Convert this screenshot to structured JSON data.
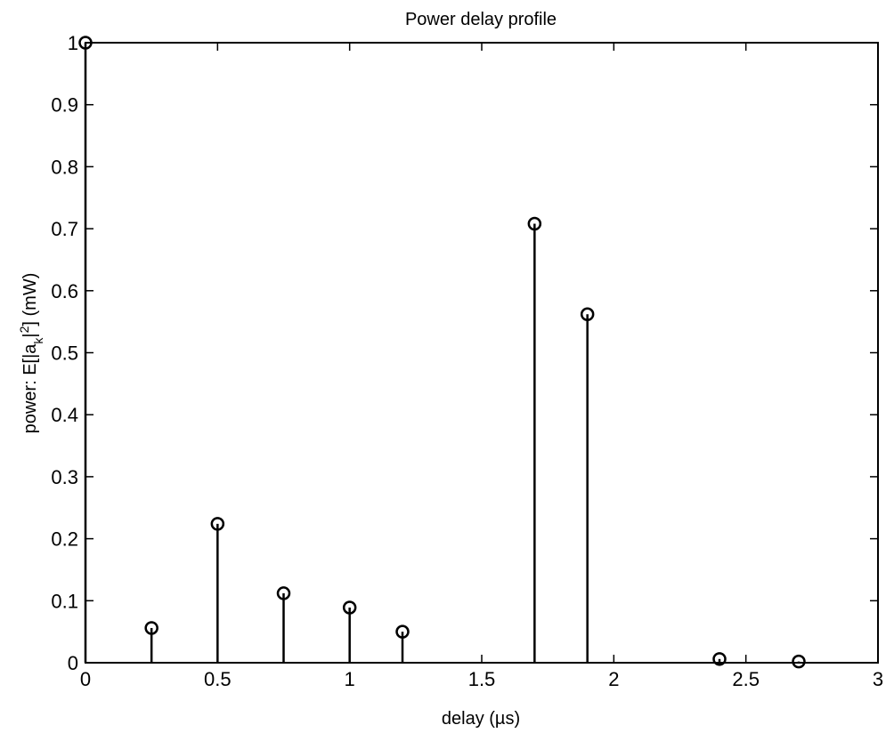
{
  "chart_data": {
    "type": "stem",
    "title": "Power delay profile",
    "xlabel": "delay (µs)",
    "ylabel_parts": {
      "prefix": "power: E[|a",
      "subscript": "k",
      "middle": "|",
      "superscript": "2",
      "suffix": "] (mW)"
    },
    "xlim": [
      0,
      3
    ],
    "ylim": [
      0,
      1
    ],
    "xticks": [
      0,
      0.5,
      1,
      1.5,
      2,
      2.5,
      3
    ],
    "xtick_labels": [
      "0",
      "0.5",
      "1",
      "1.5",
      "2",
      "2.5",
      "3"
    ],
    "yticks": [
      0,
      0.1,
      0.2,
      0.3,
      0.4,
      0.5,
      0.6,
      0.7,
      0.8,
      0.9,
      1
    ],
    "ytick_labels": [
      "0",
      "0.1",
      "0.2",
      "0.3",
      "0.4",
      "0.5",
      "0.6",
      "0.7",
      "0.8",
      "0.9",
      "1"
    ],
    "grid": false,
    "marker": "circle",
    "x": [
      0,
      0.25,
      0.5,
      0.75,
      1.0,
      1.2,
      1.7,
      1.9,
      2.4,
      2.7
    ],
    "y": [
      1.0,
      0.056,
      0.224,
      0.112,
      0.089,
      0.05,
      0.708,
      0.562,
      0.006,
      0.002
    ],
    "colors": {
      "line": "#000000",
      "background": "#ffffff"
    }
  }
}
